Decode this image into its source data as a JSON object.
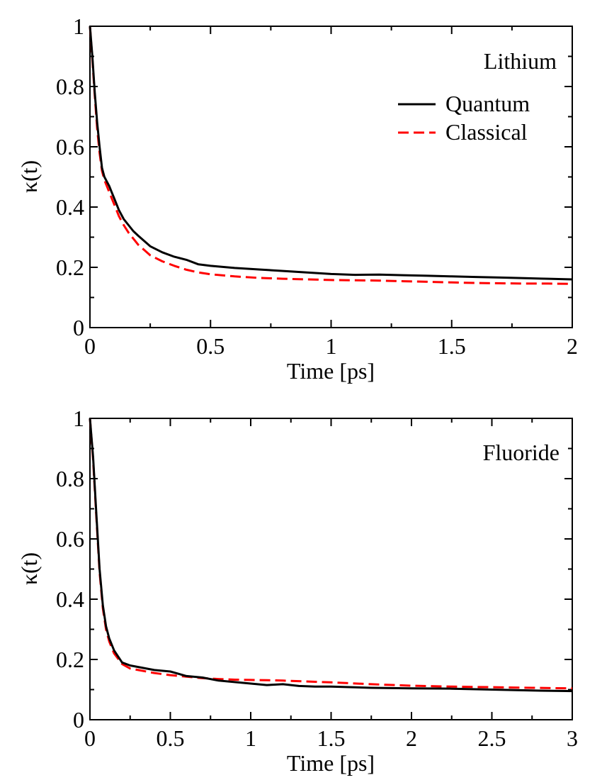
{
  "chart_data": [
    {
      "type": "line",
      "panel_label": "Lithium",
      "xlabel": "Time [ps]",
      "ylabel": "κ(t)",
      "xlim": [
        0,
        2
      ],
      "ylim": [
        0,
        1
      ],
      "xticks": [
        0,
        0.5,
        1,
        1.5,
        2
      ],
      "xtick_labels": [
        "0",
        "0.5",
        "1",
        "1.5",
        "2"
      ],
      "yticks": [
        0,
        0.2,
        0.4,
        0.6,
        0.8,
        1
      ],
      "ytick_labels": [
        "0",
        "0.2",
        "0.4",
        "0.6",
        "0.8",
        "1"
      ],
      "legend": {
        "placement": "top-right",
        "entries": [
          "Quantum",
          "Classical"
        ]
      },
      "series": [
        {
          "name": "Quantum",
          "color": "#000000",
          "style": "solid",
          "x": [
            0,
            0.01,
            0.02,
            0.03,
            0.04,
            0.05,
            0.06,
            0.07,
            0.08,
            0.09,
            0.1,
            0.12,
            0.14,
            0.16,
            0.18,
            0.2,
            0.25,
            0.3,
            0.35,
            0.4,
            0.45,
            0.5,
            0.6,
            0.7,
            0.8,
            0.9,
            1.0,
            1.1,
            1.2,
            1.3,
            1.4,
            1.5,
            1.6,
            1.7,
            1.8,
            1.9,
            2.0
          ],
          "y": [
            1.0,
            0.9,
            0.78,
            0.68,
            0.6,
            0.53,
            0.5,
            0.485,
            0.47,
            0.45,
            0.43,
            0.39,
            0.36,
            0.34,
            0.32,
            0.305,
            0.27,
            0.25,
            0.235,
            0.225,
            0.21,
            0.205,
            0.198,
            0.193,
            0.188,
            0.183,
            0.178,
            0.175,
            0.176,
            0.174,
            0.172,
            0.17,
            0.168,
            0.166,
            0.164,
            0.162,
            0.16
          ]
        },
        {
          "name": "Classical",
          "color": "#ff0000",
          "style": "dashed",
          "x": [
            0,
            0.01,
            0.02,
            0.03,
            0.04,
            0.05,
            0.06,
            0.07,
            0.08,
            0.09,
            0.1,
            0.12,
            0.14,
            0.16,
            0.18,
            0.2,
            0.25,
            0.3,
            0.35,
            0.4,
            0.45,
            0.5,
            0.6,
            0.7,
            0.8,
            0.9,
            1.0,
            1.1,
            1.2,
            1.3,
            1.4,
            1.5,
            1.6,
            1.7,
            1.8,
            1.9,
            2.0
          ],
          "y": [
            1.0,
            0.89,
            0.77,
            0.66,
            0.58,
            0.52,
            0.49,
            0.47,
            0.45,
            0.43,
            0.41,
            0.37,
            0.34,
            0.315,
            0.295,
            0.275,
            0.24,
            0.22,
            0.205,
            0.192,
            0.183,
            0.177,
            0.17,
            0.165,
            0.162,
            0.16,
            0.158,
            0.157,
            0.156,
            0.154,
            0.152,
            0.15,
            0.148,
            0.147,
            0.146,
            0.146,
            0.145
          ]
        }
      ]
    },
    {
      "type": "line",
      "panel_label": "Fluoride",
      "xlabel": "Time [ps]",
      "ylabel": "κ(t)",
      "xlim": [
        0,
        3
      ],
      "ylim": [
        0,
        1
      ],
      "xticks": [
        0,
        0.5,
        1,
        1.5,
        2,
        2.5,
        3
      ],
      "xtick_labels": [
        "0",
        "0.5",
        "1",
        "1.5",
        "2",
        "2.5",
        "3"
      ],
      "yticks": [
        0,
        0.2,
        0.4,
        0.6,
        0.8,
        1
      ],
      "ytick_labels": [
        "0",
        "0.2",
        "0.4",
        "0.6",
        "0.8",
        "1"
      ],
      "series": [
        {
          "name": "Quantum",
          "color": "#000000",
          "style": "solid",
          "x": [
            0,
            0.02,
            0.04,
            0.06,
            0.08,
            0.1,
            0.12,
            0.15,
            0.2,
            0.25,
            0.3,
            0.4,
            0.5,
            0.6,
            0.7,
            0.8,
            0.9,
            1.0,
            1.1,
            1.2,
            1.3,
            1.4,
            1.5,
            1.75,
            2.0,
            2.25,
            2.5,
            2.75,
            3.0
          ],
          "y": [
            1.0,
            0.87,
            0.68,
            0.5,
            0.38,
            0.31,
            0.27,
            0.23,
            0.19,
            0.18,
            0.175,
            0.165,
            0.16,
            0.145,
            0.14,
            0.13,
            0.125,
            0.12,
            0.115,
            0.118,
            0.112,
            0.11,
            0.11,
            0.106,
            0.104,
            0.103,
            0.1,
            0.097,
            0.095
          ]
        },
        {
          "name": "Classical",
          "color": "#ff0000",
          "style": "dashed",
          "x": [
            0,
            0.02,
            0.04,
            0.06,
            0.08,
            0.1,
            0.12,
            0.15,
            0.2,
            0.25,
            0.3,
            0.4,
            0.5,
            0.6,
            0.7,
            0.8,
            0.9,
            1.0,
            1.1,
            1.2,
            1.3,
            1.4,
            1.5,
            1.75,
            2.0,
            2.25,
            2.5,
            2.75,
            3.0
          ],
          "y": [
            1.0,
            0.86,
            0.67,
            0.49,
            0.37,
            0.3,
            0.26,
            0.22,
            0.185,
            0.17,
            0.165,
            0.155,
            0.148,
            0.143,
            0.138,
            0.135,
            0.133,
            0.132,
            0.131,
            0.13,
            0.128,
            0.126,
            0.124,
            0.118,
            0.113,
            0.11,
            0.108,
            0.106,
            0.104
          ]
        }
      ]
    }
  ]
}
